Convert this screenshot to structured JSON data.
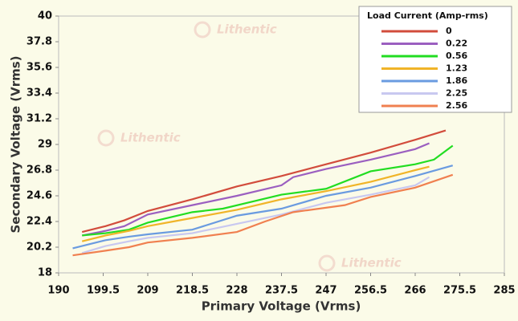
{
  "chart_data": {
    "type": "line",
    "x_label": "Primary Voltage (Vrms)",
    "y_label": "Secondary Voltage (Vrms)",
    "legend_title": "Load Current (Amp-rms)",
    "legend_position": "top-right",
    "watermark": "Lithentic",
    "xlim": [
      190,
      285
    ],
    "xticks": [
      190,
      199.5,
      209,
      218.5,
      228,
      237.5,
      247,
      256.5,
      266,
      275.5,
      285
    ],
    "ylim": [
      18,
      40
    ],
    "yticks": [
      18,
      20.2,
      22.4,
      24.6,
      26.8,
      29,
      31.2,
      33.4,
      35.6,
      37.8,
      40
    ],
    "series": [
      {
        "name": "0",
        "color": "#d24c3c",
        "x": [
          195,
          200,
          204,
          209,
          218.5,
          228,
          237.5,
          247,
          256.5,
          266,
          272.5
        ],
        "values": [
          21.5,
          22.0,
          22.5,
          23.3,
          24.3,
          25.4,
          26.3,
          27.3,
          28.3,
          29.4,
          30.2
        ]
      },
      {
        "name": "0.22",
        "color": "#9b5fc0",
        "x": [
          195,
          200,
          204,
          209,
          218.5,
          228,
          237.5,
          240,
          247,
          256.5,
          266,
          269
        ],
        "values": [
          21.2,
          21.6,
          22.0,
          23.0,
          23.8,
          24.6,
          25.5,
          26.2,
          26.9,
          27.7,
          28.6,
          29.1
        ]
      },
      {
        "name": "0.56",
        "color": "#22dd22",
        "x": [
          195,
          200,
          205,
          209,
          218.5,
          225,
          237.5,
          247,
          256.5,
          266,
          270,
          274
        ],
        "values": [
          21.2,
          21.4,
          21.7,
          22.3,
          23.2,
          23.5,
          24.7,
          25.2,
          26.7,
          27.3,
          27.7,
          28.9
        ]
      },
      {
        "name": "1.23",
        "color": "#f0b428",
        "x": [
          195,
          200,
          205,
          209,
          218.5,
          228,
          237.5,
          247,
          256.5,
          266,
          269
        ],
        "values": [
          20.7,
          21.2,
          21.6,
          22.0,
          22.7,
          23.4,
          24.3,
          25.0,
          25.8,
          26.8,
          27.1
        ]
      },
      {
        "name": "1.86",
        "color": "#6a9be0",
        "x": [
          193,
          200,
          205,
          209,
          218.5,
          228,
          237.5,
          247,
          256.5,
          266,
          274
        ],
        "values": [
          20.1,
          20.8,
          21.1,
          21.3,
          21.7,
          22.9,
          23.5,
          24.6,
          25.3,
          26.3,
          27.2
        ]
      },
      {
        "name": "2.25",
        "color": "#c8c8f0",
        "x": [
          195,
          200,
          205,
          209,
          218.5,
          228,
          237.5,
          247,
          256.5,
          266,
          269
        ],
        "values": [
          19.7,
          20.3,
          20.7,
          21.0,
          21.4,
          22.2,
          23.0,
          24.0,
          24.7,
          25.5,
          26.2
        ]
      },
      {
        "name": "2.56",
        "color": "#f08050",
        "x": [
          193,
          200,
          205,
          209,
          218.5,
          228,
          234,
          240,
          251,
          256.5,
          266,
          274
        ],
        "values": [
          19.5,
          19.9,
          20.2,
          20.6,
          21.0,
          21.5,
          22.4,
          23.2,
          23.8,
          24.5,
          25.3,
          26.4
        ]
      }
    ]
  }
}
